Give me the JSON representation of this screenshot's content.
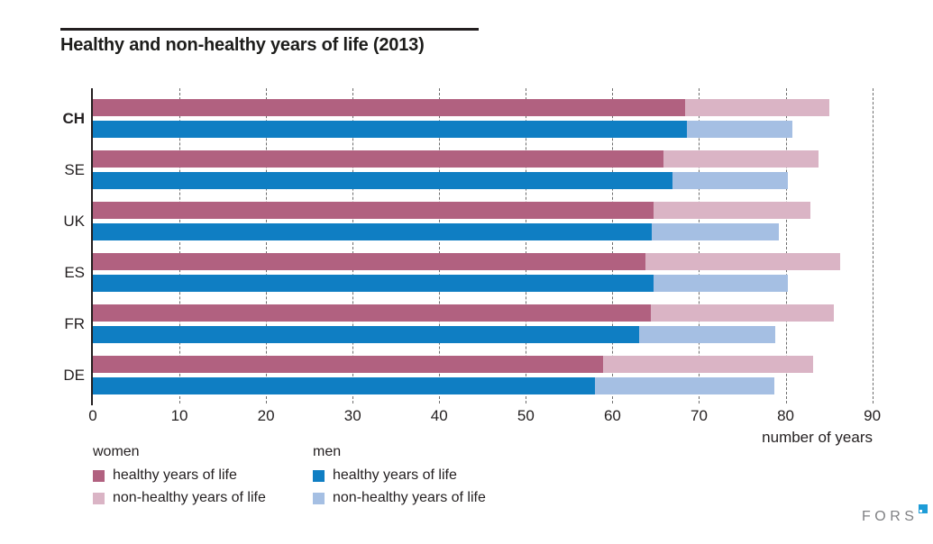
{
  "title": "Healthy and non-healthy years of life (2013)",
  "chart_data": {
    "type": "bar",
    "orientation": "horizontal",
    "title": "Healthy and non-healthy years of life (2013)",
    "xlabel": "number of years",
    "xlim": [
      0,
      90
    ],
    "xticks": [
      0,
      10,
      20,
      30,
      40,
      50,
      60,
      70,
      80,
      90
    ],
    "grid": "vertical-dashed",
    "categories": [
      "CH",
      "SE",
      "UK",
      "ES",
      "FR",
      "DE"
    ],
    "rows": [
      {
        "country": "CH",
        "bold": true,
        "women": {
          "healthy": 68.4,
          "non_healthy": 16.6,
          "total": 85.0
        },
        "men": {
          "healthy": 68.6,
          "non_healthy": 12.2,
          "total": 80.8
        }
      },
      {
        "country": "SE",
        "bold": false,
        "women": {
          "healthy": 65.9,
          "non_healthy": 17.9,
          "total": 83.8
        },
        "men": {
          "healthy": 66.9,
          "non_healthy": 13.4,
          "total": 80.3
        }
      },
      {
        "country": "UK",
        "bold": false,
        "women": {
          "healthy": 64.7,
          "non_healthy": 18.2,
          "total": 82.9
        },
        "men": {
          "healthy": 64.5,
          "non_healthy": 14.7,
          "total": 79.2
        }
      },
      {
        "country": "ES",
        "bold": false,
        "women": {
          "healthy": 63.8,
          "non_healthy": 22.5,
          "total": 86.3
        },
        "men": {
          "healthy": 64.7,
          "non_healthy": 15.6,
          "total": 80.3
        }
      },
      {
        "country": "FR",
        "bold": false,
        "women": {
          "healthy": 64.4,
          "non_healthy": 21.2,
          "total": 85.6
        },
        "men": {
          "healthy": 63.1,
          "non_healthy": 15.7,
          "total": 78.8
        }
      },
      {
        "country": "DE",
        "bold": false,
        "women": {
          "healthy": 58.9,
          "non_healthy": 24.3,
          "total": 83.2
        },
        "men": {
          "healthy": 58.0,
          "non_healthy": 20.7,
          "total": 78.7
        }
      }
    ],
    "series": [
      {
        "name": "women healthy years of life",
        "values": [
          68.4,
          65.9,
          64.7,
          63.8,
          64.4,
          58.9
        ]
      },
      {
        "name": "women non-healthy years of life",
        "values": [
          16.6,
          17.9,
          18.2,
          22.5,
          21.2,
          24.3
        ]
      },
      {
        "name": "men healthy years of life",
        "values": [
          68.6,
          66.9,
          64.5,
          64.7,
          63.1,
          58.0
        ]
      },
      {
        "name": "men non-healthy years of life",
        "values": [
          12.2,
          13.4,
          14.7,
          15.6,
          15.7,
          20.7
        ]
      }
    ],
    "legend_position": "bottom-left"
  },
  "legend": {
    "groups": [
      {
        "title": "women",
        "items": [
          {
            "label": "healthy years of life",
            "color_key": "women_healthy"
          },
          {
            "label": "non-healthy years of life",
            "color_key": "women_non_healthy"
          }
        ]
      },
      {
        "title": "men",
        "items": [
          {
            "label": "healthy years of life",
            "color_key": "men_healthy"
          },
          {
            "label": "non-healthy years of life",
            "color_key": "men_non_healthy"
          }
        ]
      }
    ]
  },
  "colors": {
    "women_healthy": "#b16180",
    "women_non_healthy": "#dab4c5",
    "men_healthy": "#0f7ec3",
    "men_non_healthy": "#a5bfe3",
    "axis": "#231f20",
    "gridline": "#6d6d6d",
    "fors_gray": "#808184",
    "fors_blue": "#1e9cd7"
  },
  "footer": {
    "logo_text": "FORS"
  }
}
